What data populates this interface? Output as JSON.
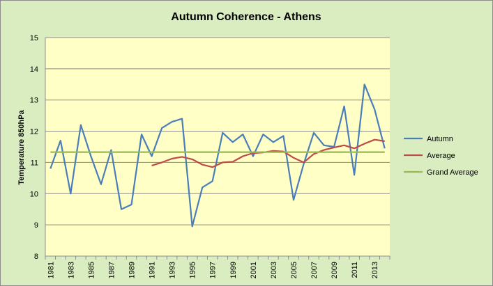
{
  "chart_data": {
    "type": "line",
    "title": "Autumn Coherence - Athens",
    "xlabel": "",
    "ylabel": "Temperature 850hPa",
    "ylim": [
      8,
      15
    ],
    "yticks": [
      "8",
      "9",
      "10",
      "11",
      "12",
      "13",
      "14",
      "15"
    ],
    "x": [
      1981,
      1982,
      1983,
      1984,
      1985,
      1986,
      1987,
      1988,
      1989,
      1990,
      1991,
      1992,
      1993,
      1994,
      1995,
      1996,
      1997,
      1998,
      1999,
      2000,
      2001,
      2002,
      2003,
      2004,
      2005,
      2006,
      2007,
      2008,
      2009,
      2010,
      2011,
      2012,
      2013,
      2014
    ],
    "xtick_labels": [
      "1981",
      "1983",
      "1985",
      "1987",
      "1989",
      "1991",
      "1993",
      "1995",
      "1997",
      "1999",
      "2001",
      "2003",
      "2005",
      "2007",
      "2009",
      "2011",
      "2013"
    ],
    "grid": "horizontal",
    "legend_position": "right",
    "series": [
      {
        "name": "Autumn",
        "color": "#4a7ebb",
        "values": [
          10.8,
          11.7,
          10.0,
          12.2,
          11.2,
          10.3,
          11.4,
          9.5,
          9.65,
          11.9,
          11.2,
          12.1,
          12.3,
          12.4,
          8.95,
          10.2,
          10.4,
          11.95,
          11.65,
          11.9,
          11.2,
          11.9,
          11.65,
          11.85,
          9.8,
          10.95,
          11.95,
          11.55,
          11.5,
          12.8,
          10.6,
          13.5,
          12.7,
          11.45
        ]
      },
      {
        "name": "Average",
        "color": "#be4b48",
        "values": [
          null,
          null,
          null,
          null,
          null,
          null,
          null,
          null,
          null,
          null,
          10.9,
          11.0,
          11.12,
          11.18,
          11.1,
          10.93,
          10.85,
          11.0,
          11.02,
          11.2,
          11.3,
          11.32,
          11.37,
          11.35,
          11.15,
          11.0,
          11.27,
          11.4,
          11.48,
          11.55,
          11.45,
          11.6,
          11.73,
          11.68
        ]
      },
      {
        "name": "Grand Average",
        "color": "#98b954",
        "values": [
          11.33,
          11.33,
          11.33,
          11.33,
          11.33,
          11.33,
          11.33,
          11.33,
          11.33,
          11.33,
          11.33,
          11.33,
          11.33,
          11.33,
          11.33,
          11.33,
          11.33,
          11.33,
          11.33,
          11.33,
          11.33,
          11.33,
          11.33,
          11.33,
          11.33,
          11.33,
          11.33,
          11.33,
          11.33,
          11.33,
          11.33,
          11.33,
          11.33,
          11.33
        ]
      }
    ]
  },
  "colors": {
    "background": "#d9edc0",
    "plot_area": "#ffffc6",
    "gridline": "#8c8c8c"
  }
}
